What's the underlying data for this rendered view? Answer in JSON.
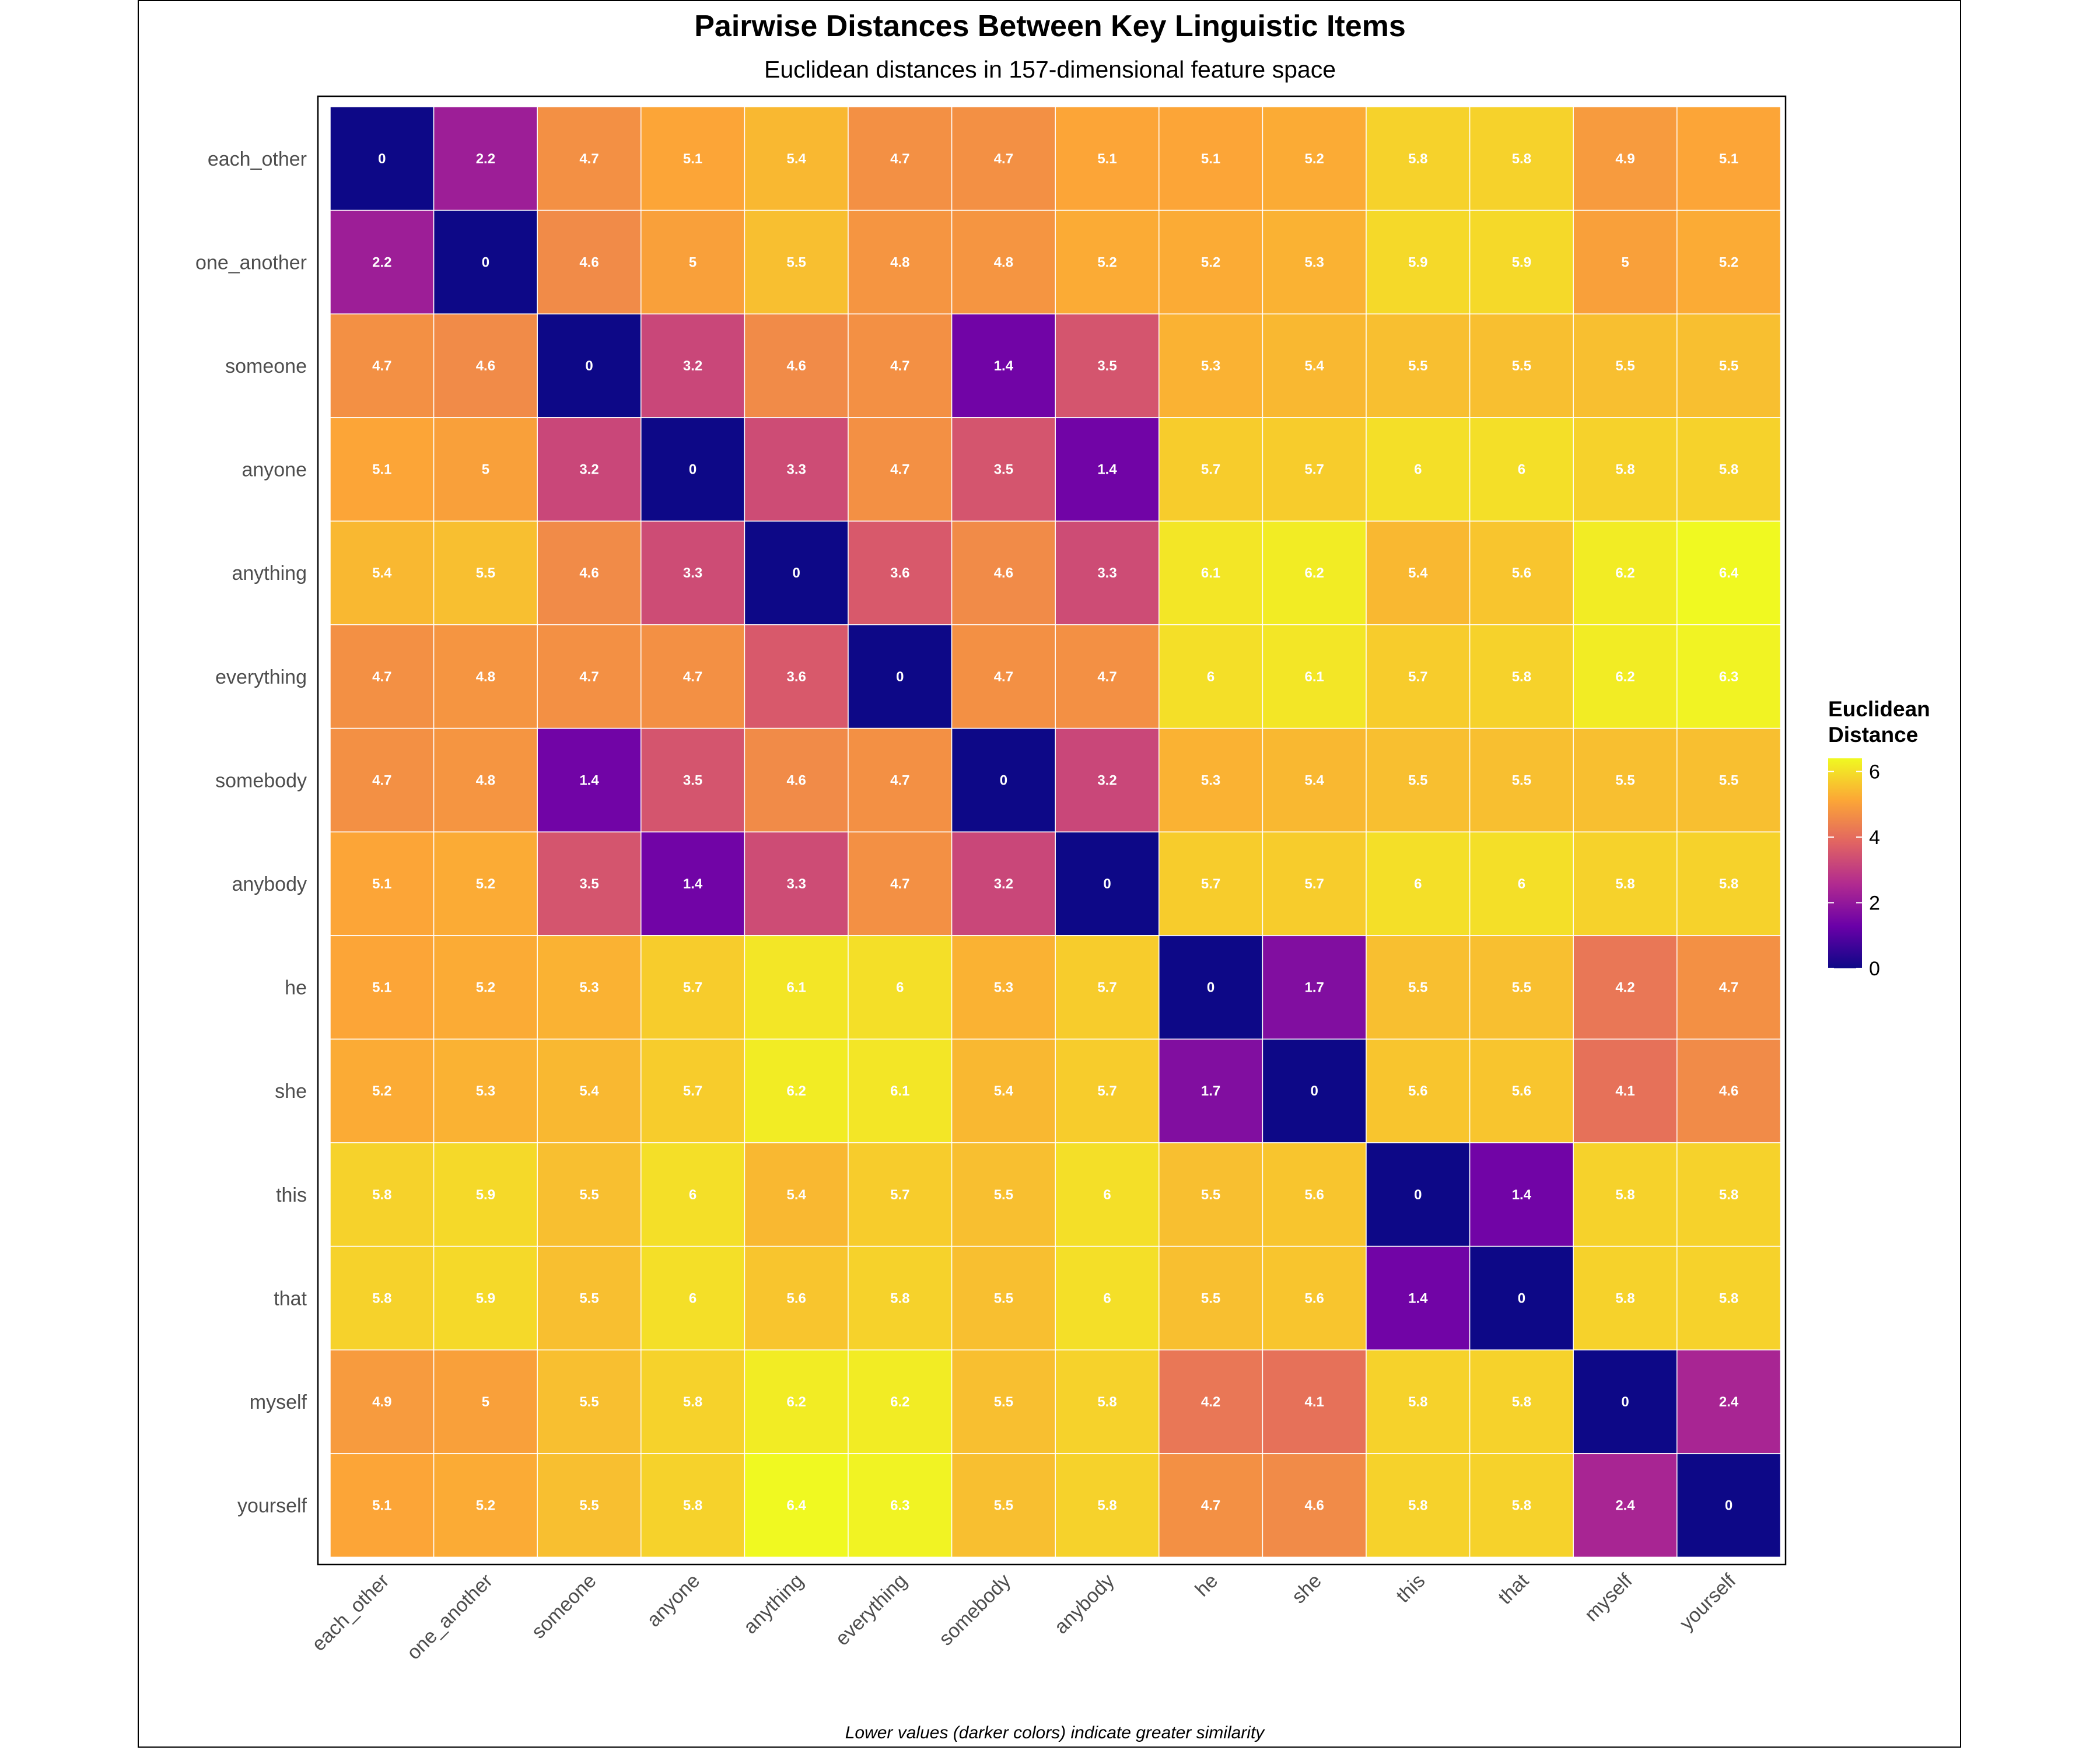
{
  "chart_data": {
    "type": "heatmap",
    "title": "Pairwise Distances Between Key Linguistic Items",
    "subtitle": "Euclidean distances in 157-dimensional feature space",
    "caption": "Lower values (darker colors) indicate greater similarity",
    "legend": {
      "title_lines": [
        "Euclidean",
        "Distance"
      ],
      "ticks": [
        0,
        2,
        4,
        6
      ],
      "range": [
        0,
        6.4
      ],
      "placement": "right"
    },
    "colors": {
      "palette": "plasma",
      "stops": [
        "#0d0887",
        "#6a00a8",
        "#b12a90",
        "#e16462",
        "#fca636",
        "#f0f921"
      ],
      "cell_border": "#ffffff",
      "label_color": "#ffffff"
    },
    "labels": [
      "each_other",
      "one_another",
      "someone",
      "anyone",
      "anything",
      "everything",
      "somebody",
      "anybody",
      "he",
      "she",
      "this",
      "that",
      "myself",
      "yourself"
    ],
    "values": [
      [
        0,
        2.2,
        4.7,
        5.1,
        5.4,
        4.7,
        4.7,
        5.1,
        5.1,
        5.2,
        5.8,
        5.8,
        4.9,
        5.1
      ],
      [
        2.2,
        0,
        4.6,
        5,
        5.5,
        4.8,
        4.8,
        5.2,
        5.2,
        5.3,
        5.9,
        5.9,
        5,
        5.2
      ],
      [
        4.7,
        4.6,
        0,
        3.2,
        4.6,
        4.7,
        1.4,
        3.5,
        5.3,
        5.4,
        5.5,
        5.5,
        5.5,
        5.5
      ],
      [
        5.1,
        5,
        3.2,
        0,
        3.3,
        4.7,
        3.5,
        1.4,
        5.7,
        5.7,
        6,
        6,
        5.8,
        5.8
      ],
      [
        5.4,
        5.5,
        4.6,
        3.3,
        0,
        3.6,
        4.6,
        3.3,
        6.1,
        6.2,
        5.4,
        5.6,
        6.2,
        6.4
      ],
      [
        4.7,
        4.8,
        4.7,
        4.7,
        3.6,
        0,
        4.7,
        4.7,
        6,
        6.1,
        5.7,
        5.8,
        6.2,
        6.3
      ],
      [
        4.7,
        4.8,
        1.4,
        3.5,
        4.6,
        4.7,
        0,
        3.2,
        5.3,
        5.4,
        5.5,
        5.5,
        5.5,
        5.5
      ],
      [
        5.1,
        5.2,
        3.5,
        1.4,
        3.3,
        4.7,
        3.2,
        0,
        5.7,
        5.7,
        6,
        6,
        5.8,
        5.8
      ],
      [
        5.1,
        5.2,
        5.3,
        5.7,
        6.1,
        6,
        5.3,
        5.7,
        0,
        1.7,
        5.5,
        5.5,
        4.2,
        4.7
      ],
      [
        5.2,
        5.3,
        5.4,
        5.7,
        6.2,
        6.1,
        5.4,
        5.7,
        1.7,
        0,
        5.6,
        5.6,
        4.1,
        4.6
      ],
      [
        5.8,
        5.9,
        5.5,
        6,
        5.4,
        5.7,
        5.5,
        6,
        5.5,
        5.6,
        0,
        1.4,
        5.8,
        5.8
      ],
      [
        5.8,
        5.9,
        5.5,
        6,
        5.6,
        5.8,
        5.5,
        6,
        5.5,
        5.6,
        1.4,
        0,
        5.8,
        5.8
      ],
      [
        4.9,
        5,
        5.5,
        5.8,
        6.2,
        6.2,
        5.5,
        5.8,
        4.2,
        4.1,
        5.8,
        5.8,
        0,
        2.4
      ],
      [
        5.1,
        5.2,
        5.5,
        5.8,
        6.4,
        6.3,
        5.5,
        5.8,
        4.7,
        4.6,
        5.8,
        5.8,
        2.4,
        0
      ]
    ]
  }
}
